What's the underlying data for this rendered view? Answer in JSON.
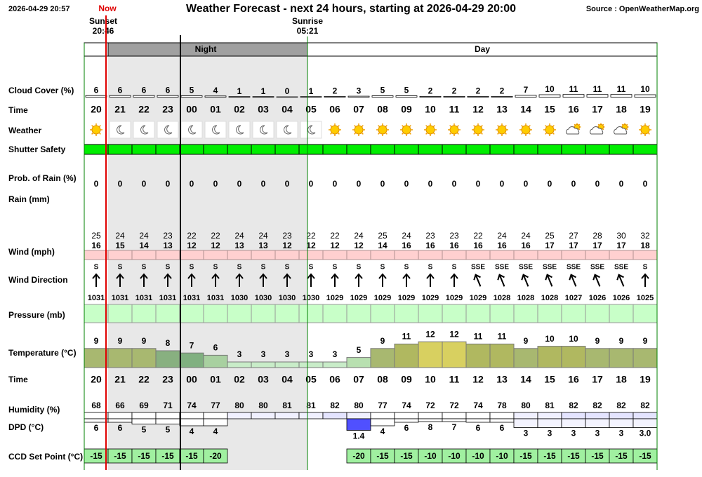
{
  "header": {
    "timestamp": "2026-04-29 20:57",
    "now": "Now",
    "title": "Weather Forecast - next 24 hours, starting at 2026-04-29 20:00",
    "source": "Source : OpenWeatherMap.org",
    "sunset_label": "Sunset",
    "sunset": "20:46",
    "sunrise_label": "Sunrise",
    "sunrise": "05:21"
  },
  "periods": {
    "night": "Night",
    "day": "Day"
  },
  "labels": {
    "cloud": "Cloud Cover (%)",
    "time": "Time",
    "weather": "Weather",
    "shutter": "Shutter Safety",
    "rain_prob": "Prob. of Rain (%)",
    "rain": "Rain (mm)",
    "wind": "Wind (mph)",
    "wind_dir": "Wind Direction",
    "pressure": "Pressure (mb)",
    "temperature": "Temperature (°C)",
    "time2": "Time",
    "humidity": "Humidity (%)",
    "dpd": "DPD (°C)",
    "ccd": "CCD Set Point (°C)"
  },
  "hours": [
    "20",
    "21",
    "22",
    "23",
    "00",
    "01",
    "02",
    "03",
    "04",
    "05",
    "06",
    "07",
    "08",
    "09",
    "10",
    "11",
    "12",
    "13",
    "14",
    "15",
    "16",
    "17",
    "18",
    "19"
  ],
  "cloud_cover": [
    6,
    6,
    6,
    6,
    5,
    4,
    1,
    1,
    0,
    1,
    2,
    3,
    5,
    5,
    2,
    2,
    2,
    2,
    7,
    10,
    11,
    11,
    11,
    10
  ],
  "weather_icons": [
    "sun",
    "moon",
    "moon",
    "moon",
    "moon",
    "moon",
    "moon",
    "moon",
    "moon",
    "moon",
    "sun",
    "sun",
    "sun",
    "sun",
    "sun",
    "sun",
    "sun",
    "sun",
    "sun",
    "sun",
    "cloud",
    "cloud",
    "cloud",
    "sun"
  ],
  "rain_probability": [
    0,
    0,
    0,
    0,
    0,
    0,
    0,
    0,
    0,
    0,
    0,
    0,
    0,
    0,
    0,
    0,
    0,
    0,
    0,
    0,
    0,
    0,
    0,
    0
  ],
  "wind_gust": [
    25,
    24,
    24,
    23,
    22,
    22,
    24,
    24,
    23,
    22,
    22,
    24,
    25,
    24,
    23,
    23,
    22,
    24,
    24,
    25,
    27,
    28,
    30,
    32
  ],
  "wind_speed": [
    16,
    15,
    14,
    13,
    12,
    12,
    13,
    13,
    12,
    12,
    12,
    12,
    14,
    16,
    16,
    16,
    16,
    16,
    16,
    17,
    17,
    17,
    17,
    18
  ],
  "wind_direction": [
    "S",
    "S",
    "S",
    "S",
    "S",
    "S",
    "S",
    "S",
    "S",
    "S",
    "S",
    "S",
    "S",
    "S",
    "S",
    "S",
    "SSE",
    "SSE",
    "SSE",
    "SSE",
    "SSE",
    "SSE",
    "SSE",
    "S"
  ],
  "pressure": [
    1031,
    1031,
    1031,
    1031,
    1031,
    1031,
    1030,
    1030,
    1030,
    1030,
    1029,
    1029,
    1029,
    1029,
    1029,
    1029,
    1029,
    1028,
    1028,
    1028,
    1027,
    1026,
    1026,
    1025
  ],
  "temperature": [
    9,
    9,
    9,
    8,
    7,
    6,
    3,
    3,
    3,
    3,
    3,
    5,
    9,
    11,
    12,
    12,
    11,
    11,
    9,
    10,
    10,
    9,
    9,
    9
  ],
  "humidity": [
    68,
    66,
    69,
    71,
    74,
    77,
    80,
    80,
    81,
    81,
    82,
    80,
    77,
    74,
    72,
    72,
    74,
    78,
    80,
    81,
    82,
    82,
    82,
    82
  ],
  "dpd": {
    "values": [
      6,
      6,
      5,
      5,
      4,
      4,
      null,
      null,
      null,
      null,
      null,
      1.4,
      4,
      6,
      8,
      7,
      6,
      6,
      3,
      3,
      3,
      3,
      3,
      3
    ],
    "value_labels": [
      "6",
      "6",
      "5",
      "5",
      "4",
      "4",
      null,
      null,
      null,
      null,
      null,
      "1.4",
      "4",
      "6",
      "8",
      "7",
      "6",
      "6",
      "3",
      "3",
      "3",
      "3",
      "3",
      "3.0"
    ]
  },
  "ccd_set_point": [
    -15,
    -15,
    -15,
    -15,
    -15,
    -20,
    null,
    null,
    null,
    null,
    null,
    -20,
    -15,
    -15,
    -10,
    -10,
    -10,
    -10,
    -15,
    -15,
    -15,
    -15,
    -15,
    -15
  ]
}
